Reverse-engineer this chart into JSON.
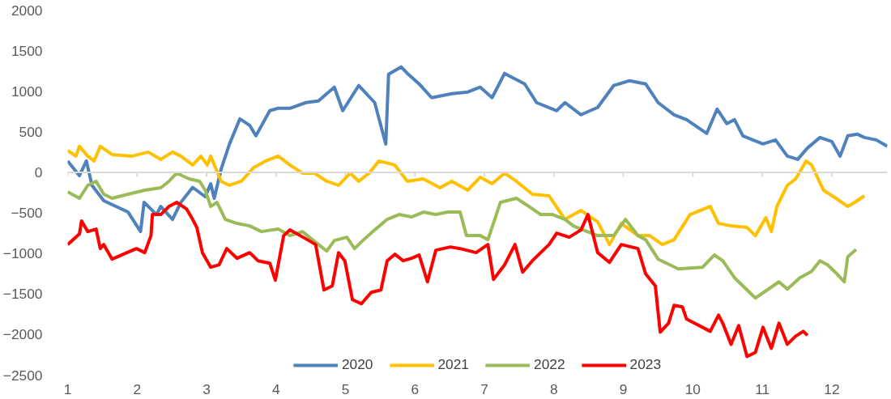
{
  "chart_data": {
    "type": "line",
    "xlim": [
      1,
      12.8
    ],
    "xticks": [
      1,
      2,
      3,
      4,
      5,
      6,
      7,
      8,
      9,
      10,
      11,
      12
    ],
    "ylim": [
      -2500,
      2000
    ],
    "yticks": [
      -2500,
      -2000,
      -1500,
      -1000,
      -500,
      0,
      500,
      1000,
      1500,
      2000
    ],
    "grid": false,
    "legend": "bottom",
    "line_style": "solid",
    "ref_lines": [
      {
        "axis": "y",
        "value": 0,
        "color": "#d9d9d9"
      }
    ],
    "series": [
      {
        "name": "2020",
        "color": "#4f81bd",
        "x": [
          1.0,
          1.17,
          1.27,
          1.35,
          1.52,
          1.87,
          2.05,
          2.1,
          2.28,
          2.34,
          2.51,
          2.63,
          2.8,
          2.98,
          3.06,
          3.11,
          3.21,
          3.33,
          3.48,
          3.62,
          3.71,
          3.91,
          4.03,
          4.2,
          4.43,
          4.61,
          4.73,
          4.84,
          4.96,
          5.19,
          5.42,
          5.58,
          5.62,
          5.8,
          5.89,
          6.06,
          6.24,
          6.53,
          6.76,
          6.94,
          7.11,
          7.29,
          7.4,
          7.58,
          7.75,
          8.04,
          8.16,
          8.39,
          8.63,
          8.86,
          9.09,
          9.32,
          9.5,
          9.73,
          9.91,
          10.2,
          10.35,
          10.49,
          10.6,
          10.72,
          11.01,
          11.19,
          11.36,
          11.51,
          11.65,
          11.83,
          12.0,
          12.12,
          12.23,
          12.37,
          12.47,
          12.64,
          12.8
        ],
        "values": [
          140,
          -40,
          140,
          -160,
          -350,
          -490,
          -730,
          -370,
          -520,
          -420,
          -580,
          -370,
          -185,
          -300,
          -140,
          -320,
          40,
          350,
          660,
          580,
          450,
          760,
          790,
          790,
          860,
          880,
          970,
          1050,
          760,
          1070,
          860,
          350,
          1210,
          1300,
          1220,
          1090,
          920,
          970,
          990,
          1050,
          920,
          1220,
          1170,
          1090,
          860,
          760,
          860,
          710,
          800,
          1070,
          1130,
          1090,
          860,
          710,
          650,
          480,
          780,
          600,
          650,
          450,
          350,
          400,
          200,
          160,
          300,
          430,
          380,
          200,
          450,
          470,
          430,
          400,
          320
        ]
      },
      {
        "name": "2021",
        "color": "#ffc000",
        "x": [
          1.0,
          1.12,
          1.17,
          1.29,
          1.38,
          1.47,
          1.64,
          1.93,
          2.16,
          2.34,
          2.51,
          2.63,
          2.8,
          2.92,
          3.01,
          3.06,
          3.21,
          3.33,
          3.5,
          3.68,
          3.85,
          4.03,
          4.2,
          4.38,
          4.55,
          4.73,
          4.9,
          5.07,
          5.19,
          5.34,
          5.48,
          5.71,
          5.89,
          6.12,
          6.36,
          6.53,
          6.76,
          6.94,
          7.11,
          7.29,
          7.46,
          7.69,
          7.93,
          8.16,
          8.39,
          8.63,
          8.8,
          8.97,
          9.21,
          9.38,
          9.56,
          9.73,
          9.96,
          10.25,
          10.37,
          10.55,
          10.78,
          10.9,
          11.05,
          11.13,
          11.21,
          11.36,
          11.48,
          11.63,
          11.71,
          11.88,
          12.06,
          12.23,
          12.33,
          12.47
        ],
        "values": [
          270,
          200,
          320,
          200,
          140,
          320,
          220,
          200,
          250,
          160,
          250,
          200,
          90,
          200,
          90,
          200,
          -110,
          -160,
          -110,
          60,
          140,
          200,
          90,
          -10,
          -10,
          -110,
          -160,
          -10,
          -110,
          -10,
          140,
          90,
          -110,
          -80,
          -190,
          -110,
          -220,
          -60,
          -140,
          -10,
          -110,
          -270,
          -290,
          -580,
          -470,
          -610,
          -890,
          -630,
          -780,
          -780,
          -890,
          -830,
          -520,
          -420,
          -630,
          -660,
          -680,
          -780,
          -560,
          -730,
          -420,
          -160,
          -80,
          140,
          90,
          -220,
          -320,
          -420,
          -370,
          -290
        ]
      },
      {
        "name": "2022",
        "color": "#9bbb59",
        "x": [
          1.0,
          1.17,
          1.29,
          1.41,
          1.52,
          1.64,
          1.87,
          2.11,
          2.34,
          2.46,
          2.57,
          2.75,
          2.9,
          2.98,
          3.06,
          3.15,
          3.27,
          3.44,
          3.62,
          3.79,
          4.03,
          4.2,
          4.38,
          4.61,
          4.73,
          4.84,
          5.02,
          5.13,
          5.25,
          5.42,
          5.6,
          5.77,
          5.95,
          6.12,
          6.3,
          6.47,
          6.65,
          6.74,
          6.94,
          7.05,
          7.23,
          7.46,
          7.64,
          7.81,
          7.98,
          8.16,
          8.28,
          8.39,
          8.63,
          8.86,
          9.03,
          9.21,
          9.32,
          9.5,
          9.79,
          10.14,
          10.31,
          10.43,
          10.6,
          10.9,
          11.07,
          11.24,
          11.36,
          11.54,
          11.71,
          11.83,
          11.94,
          12.06,
          12.18,
          12.23,
          12.35
        ],
        "values": [
          -240,
          -320,
          -160,
          -110,
          -270,
          -320,
          -270,
          -220,
          -190,
          -110,
          -10,
          -80,
          -110,
          -220,
          -420,
          -370,
          -580,
          -630,
          -660,
          -730,
          -700,
          -780,
          -730,
          -890,
          -970,
          -840,
          -800,
          -940,
          -840,
          -710,
          -580,
          -520,
          -550,
          -490,
          -520,
          -490,
          -490,
          -780,
          -780,
          -830,
          -370,
          -320,
          -420,
          -520,
          -520,
          -580,
          -660,
          -700,
          -780,
          -780,
          -580,
          -780,
          -830,
          -1070,
          -1190,
          -1170,
          -1020,
          -1090,
          -1300,
          -1550,
          -1450,
          -1350,
          -1440,
          -1300,
          -1220,
          -1090,
          -1140,
          -1240,
          -1350,
          -1040,
          -950
        ]
      },
      {
        "name": "2023",
        "color": "#ff0000",
        "x": [
          1.0,
          1.17,
          1.2,
          1.29,
          1.41,
          1.47,
          1.52,
          1.64,
          1.99,
          2.11,
          2.2,
          2.22,
          2.34,
          2.46,
          2.57,
          2.71,
          2.8,
          2.86,
          2.94,
          3.06,
          3.18,
          3.29,
          3.44,
          3.62,
          3.74,
          3.91,
          3.99,
          4.11,
          4.2,
          4.41,
          4.57,
          4.69,
          4.81,
          4.9,
          4.99,
          5.1,
          5.23,
          5.37,
          5.51,
          5.6,
          5.71,
          5.83,
          5.95,
          6.06,
          6.18,
          6.3,
          6.51,
          6.65,
          6.88,
          7.05,
          7.13,
          7.29,
          7.44,
          7.55,
          7.69,
          7.93,
          8.04,
          8.22,
          8.39,
          8.49,
          8.63,
          8.8,
          8.97,
          9.21,
          9.32,
          9.46,
          9.53,
          9.65,
          9.73,
          9.85,
          9.91,
          10.25,
          10.37,
          10.43,
          10.55,
          10.66,
          10.78,
          10.9,
          11.01,
          11.13,
          11.24,
          11.36,
          11.48,
          11.59,
          11.65
        ],
        "values": [
          -890,
          -760,
          -600,
          -730,
          -700,
          -940,
          -890,
          -1070,
          -940,
          -990,
          -780,
          -520,
          -520,
          -420,
          -370,
          -450,
          -580,
          -680,
          -990,
          -1170,
          -1140,
          -940,
          -1060,
          -990,
          -1090,
          -1120,
          -1330,
          -780,
          -710,
          -810,
          -890,
          -1450,
          -1400,
          -990,
          -1090,
          -1570,
          -1620,
          -1480,
          -1450,
          -1090,
          -1010,
          -1090,
          -1060,
          -1020,
          -1350,
          -960,
          -920,
          -940,
          -990,
          -890,
          -1320,
          -1140,
          -890,
          -1230,
          -1090,
          -890,
          -750,
          -800,
          -710,
          -520,
          -990,
          -1110,
          -890,
          -940,
          -1250,
          -1400,
          -1970,
          -1860,
          -1640,
          -1660,
          -1810,
          -1960,
          -1760,
          -1860,
          -2120,
          -1890,
          -2270,
          -2220,
          -1910,
          -2170,
          -1860,
          -2120,
          -2020,
          -1960,
          -2010
        ]
      }
    ]
  }
}
